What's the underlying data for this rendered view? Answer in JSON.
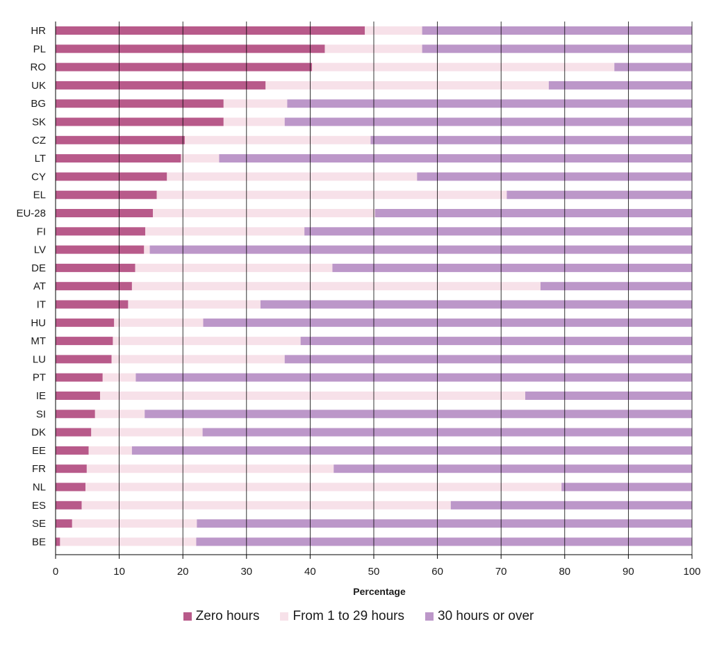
{
  "chart_data": {
    "type": "bar",
    "orientation": "horizontal",
    "stacked": true,
    "title": "",
    "xlabel": "Percentage",
    "ylabel": "",
    "xlim": [
      0,
      100
    ],
    "xticks": [
      0,
      10,
      20,
      30,
      40,
      50,
      60,
      70,
      80,
      90,
      100
    ],
    "grid": "vertical",
    "legend_position": "bottom",
    "categories": [
      "HR",
      "PL",
      "RO",
      "UK",
      "BG",
      "SK",
      "CZ",
      "LT",
      "CY",
      "EL",
      "EU-28",
      "FI",
      "LV",
      "DE",
      "AT",
      "IT",
      "HU",
      "MT",
      "LU",
      "PT",
      "IE",
      "SI",
      "DK",
      "EE",
      "FR",
      "NL",
      "ES",
      "SE",
      "BE"
    ],
    "series": [
      {
        "name": "Zero hours",
        "color": "#b85a8a",
        "values": [
          48.6,
          42.3,
          40.3,
          33.0,
          26.4,
          26.4,
          20.3,
          19.7,
          17.5,
          15.9,
          15.3,
          14.1,
          13.9,
          12.5,
          12.0,
          11.4,
          9.2,
          9.0,
          8.8,
          7.4,
          7.0,
          6.2,
          5.6,
          5.2,
          4.9,
          4.7,
          4.1,
          2.6,
          0.7
        ]
      },
      {
        "name": "From 1 to 29 hours",
        "color": "#f7e1e9",
        "values": [
          9.0,
          15.3,
          47.5,
          44.5,
          10.0,
          9.6,
          29.2,
          6.0,
          39.3,
          55.0,
          34.9,
          25.0,
          0.9,
          31.0,
          64.2,
          20.8,
          14.0,
          29.5,
          27.2,
          5.2,
          66.8,
          7.8,
          17.5,
          6.8,
          38.8,
          74.8,
          58.0,
          19.6,
          21.4
        ]
      },
      {
        "name": "30 hours or over",
        "color": "#bc97c9",
        "values": [
          42.4,
          42.4,
          12.2,
          22.5,
          63.6,
          64.0,
          50.5,
          74.3,
          43.2,
          29.1,
          49.8,
          60.9,
          85.2,
          56.5,
          23.8,
          67.8,
          76.8,
          61.5,
          64.0,
          87.4,
          26.2,
          86.0,
          76.9,
          88.0,
          56.3,
          20.5,
          37.9,
          77.8,
          77.9
        ]
      }
    ]
  }
}
